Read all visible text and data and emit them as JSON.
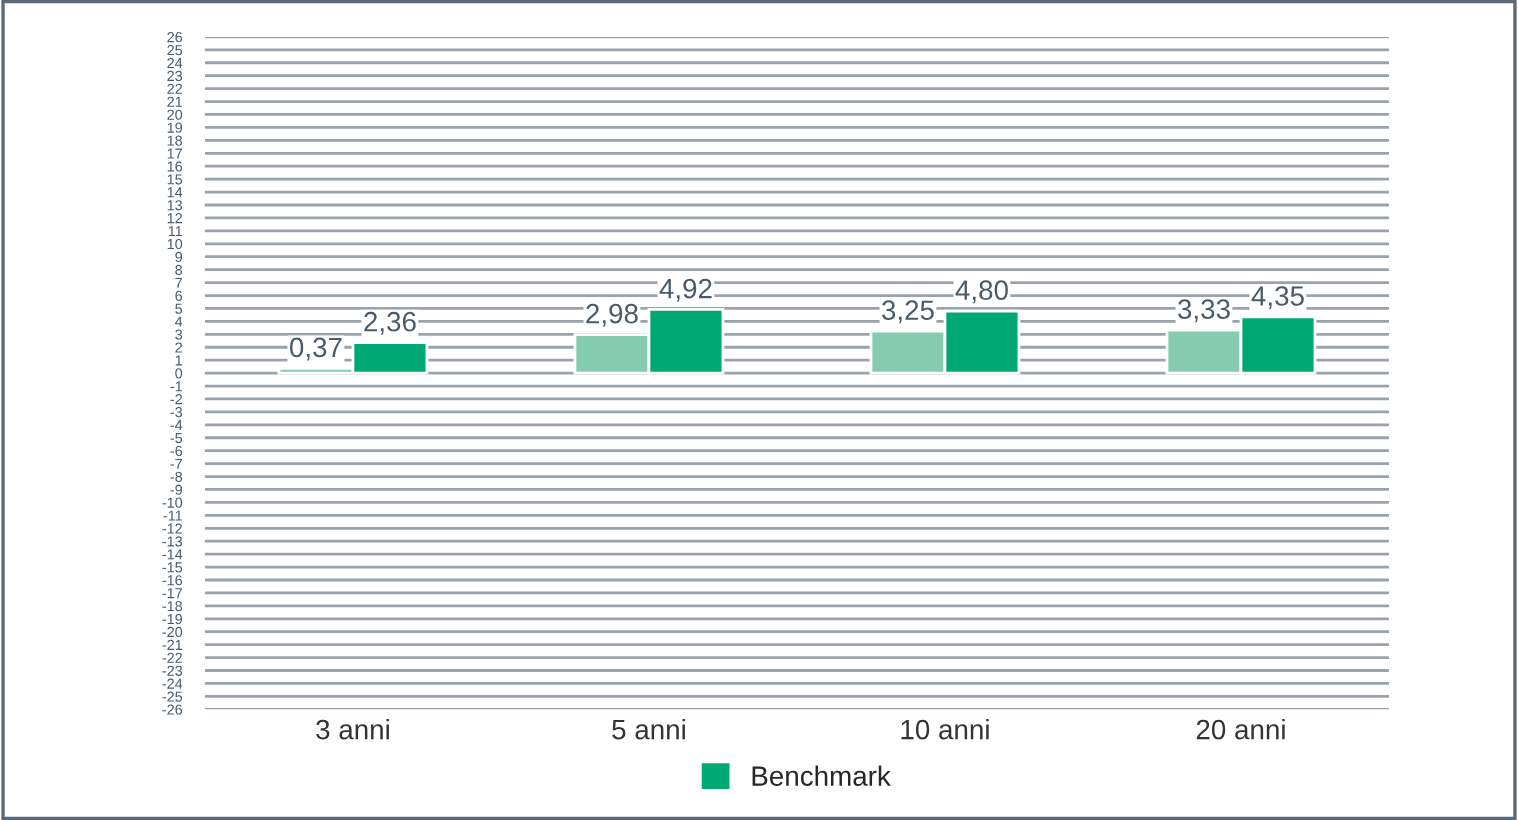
{
  "chart_data": {
    "type": "bar",
    "categories": [
      "3 anni",
      "5 anni",
      "10 anni",
      "20 anni"
    ],
    "series": [
      {
        "color": "#84cbb0",
        "values": [
          0.37,
          2.98,
          3.25,
          3.33
        ],
        "value_labels": [
          "0,37",
          "2,98",
          "3,25",
          "3,33"
        ]
      },
      {
        "name": "Benchmark",
        "color": "#00a874",
        "values": [
          2.36,
          4.92,
          4.8,
          4.35
        ],
        "value_labels": [
          "2,36",
          "4,92",
          "4,80",
          "4,35"
        ]
      }
    ],
    "ylim": [
      -26,
      26
    ],
    "yticks": [
      -26,
      -25,
      -24,
      -23,
      -22,
      -21,
      -20,
      -19,
      -18,
      -17,
      -16,
      -15,
      -14,
      -13,
      -12,
      -11,
      -10,
      -9,
      -8,
      -7,
      -6,
      -5,
      -4,
      -3,
      -2,
      -1,
      0,
      1,
      2,
      3,
      4,
      5,
      6,
      7,
      8,
      9,
      10,
      11,
      12,
      13,
      14,
      15,
      16,
      17,
      18,
      19,
      20,
      21,
      22,
      23,
      24,
      25,
      26
    ],
    "grid": "y",
    "legend": "bottom"
  }
}
